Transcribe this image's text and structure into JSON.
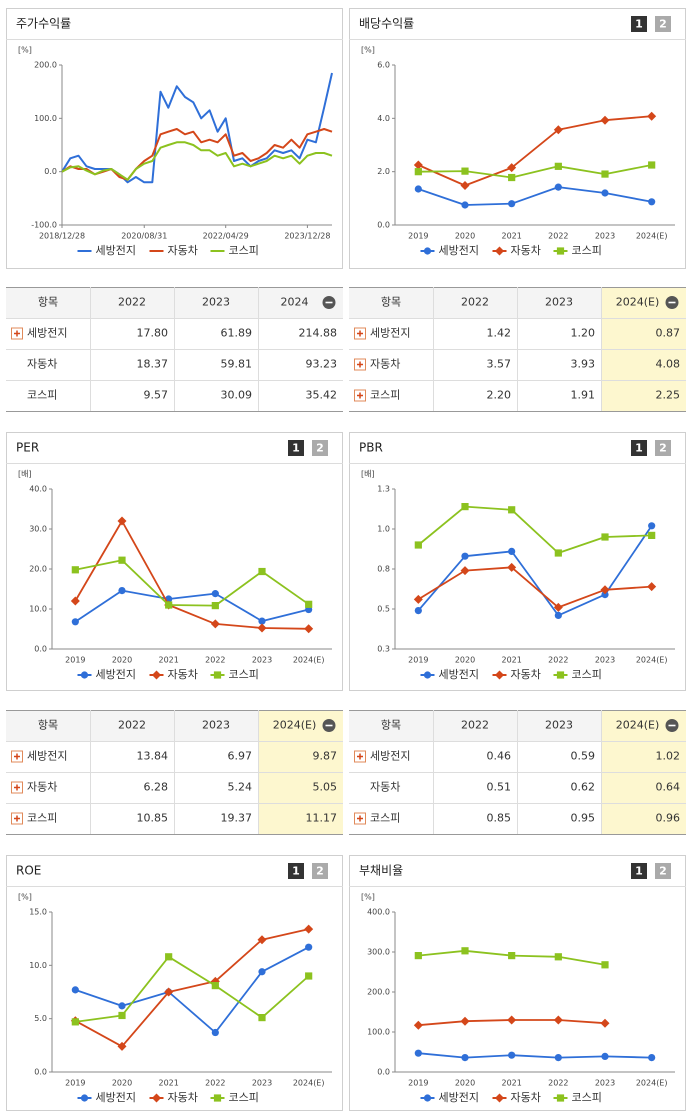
{
  "chart_data": [
    {
      "type": "line",
      "title": "주가수익률",
      "y_unit": "[%]",
      "markers": false,
      "x": [
        "2018/12/28",
        "2019/02/28",
        "2019/04/30",
        "2019/06/28",
        "2019/08/30",
        "2019/10/31",
        "2019/12/30",
        "2020/02/28",
        "2020/04/29",
        "2020/06/30",
        "2020/08/31",
        "2020/10/30",
        "2020/12/30",
        "2021/02/26",
        "2021/04/30",
        "2021/06/30",
        "2021/08/31",
        "2021/10/29",
        "2021/12/30",
        "2022/02/28",
        "2022/04/29",
        "2022/06/30",
        "2022/08/31",
        "2022/10/31",
        "2022/12/29",
        "2023/02/28",
        "2023/04/28",
        "2023/06/30",
        "2023/08/31",
        "2023/10/31",
        "2023/12/28",
        "2024/02/29",
        "2024/04/30",
        "2024/06/28"
      ],
      "xticks": [
        "2018/12/28",
        "2020/08/31",
        "2022/04/29",
        "2023/12/28"
      ],
      "ylim": [
        -100,
        200
      ],
      "yticks": [
        {
          "value": -100,
          "label": "-100.0"
        },
        {
          "value": 0,
          "label": "0.0"
        },
        {
          "value": 100,
          "label": "100.0"
        },
        {
          "value": 200,
          "label": "200.0"
        }
      ],
      "series": [
        {
          "name": "세방전지",
          "color": "#2f6fd8",
          "values": [
            0,
            25,
            30,
            10,
            5,
            5,
            5,
            -5,
            -20,
            -10,
            -20,
            -20,
            150,
            120,
            160,
            140,
            130,
            100,
            115,
            75,
            100,
            20,
            25,
            10,
            20,
            25,
            40,
            35,
            40,
            25,
            60,
            55,
            120,
            185
          ]
        },
        {
          "name": "자동차",
          "color": "#d4471a",
          "values": [
            0,
            10,
            5,
            5,
            -5,
            0,
            5,
            -10,
            -15,
            5,
            20,
            30,
            70,
            75,
            80,
            70,
            75,
            55,
            60,
            55,
            70,
            30,
            35,
            20,
            25,
            35,
            50,
            45,
            60,
            45,
            70,
            75,
            80,
            75
          ]
        },
        {
          "name": "코스피",
          "color": "#8cc21f",
          "values": [
            0,
            8,
            10,
            2,
            -5,
            2,
            5,
            -5,
            -15,
            5,
            15,
            20,
            45,
            50,
            55,
            55,
            50,
            40,
            40,
            30,
            35,
            10,
            15,
            10,
            15,
            20,
            30,
            25,
            30,
            15,
            30,
            35,
            35,
            30
          ]
        }
      ]
    },
    {
      "type": "line",
      "title": "배당수익률",
      "y_unit": "[%]",
      "markers": true,
      "buttons": [
        "1",
        "2"
      ],
      "categories": [
        "2019",
        "2020",
        "2021",
        "2022",
        "2023",
        "2024(E)"
      ],
      "ylim": [
        0,
        6
      ],
      "yticks": [
        {
          "value": 0,
          "label": "0.0"
        },
        {
          "value": 2,
          "label": "2.0"
        },
        {
          "value": 4,
          "label": "4.0"
        },
        {
          "value": 6,
          "label": "6.0"
        }
      ],
      "series": [
        {
          "name": "세방전지",
          "color": "#2f6fd8",
          "marker": "circle",
          "values": [
            1.35,
            0.75,
            0.8,
            1.42,
            1.2,
            0.87
          ]
        },
        {
          "name": "자동차",
          "color": "#d4471a",
          "marker": "diamond",
          "values": [
            2.25,
            1.48,
            2.15,
            3.57,
            3.93,
            4.08
          ]
        },
        {
          "name": "코스피",
          "color": "#8cc21f",
          "marker": "square",
          "values": [
            2.0,
            2.02,
            1.78,
            2.2,
            1.91,
            2.25
          ]
        }
      ]
    },
    {
      "type": "line",
      "title": "PER",
      "y_unit": "[배]",
      "markers": true,
      "buttons": [
        "1",
        "2"
      ],
      "categories": [
        "2019",
        "2020",
        "2021",
        "2022",
        "2023",
        "2024(E)"
      ],
      "ylim": [
        0,
        40
      ],
      "yticks": [
        {
          "value": 0,
          "label": "0.0"
        },
        {
          "value": 10,
          "label": "10.0"
        },
        {
          "value": 20,
          "label": "20.0"
        },
        {
          "value": 30,
          "label": "30.0"
        },
        {
          "value": 40,
          "label": "40.0"
        }
      ],
      "series": [
        {
          "name": "세방전지",
          "color": "#2f6fd8",
          "marker": "circle",
          "values": [
            6.8,
            14.6,
            12.5,
            13.84,
            6.97,
            9.87
          ]
        },
        {
          "name": "자동차",
          "color": "#d4471a",
          "marker": "diamond",
          "values": [
            12.0,
            32.0,
            11.0,
            6.28,
            5.24,
            5.05
          ]
        },
        {
          "name": "코스피",
          "color": "#8cc21f",
          "marker": "square",
          "values": [
            19.8,
            22.2,
            11.0,
            10.85,
            19.37,
            11.17
          ]
        }
      ]
    },
    {
      "type": "line",
      "title": "PBR",
      "y_unit": "[배]",
      "markers": true,
      "buttons": [
        "1",
        "2"
      ],
      "categories": [
        "2019",
        "2020",
        "2021",
        "2022",
        "2023",
        "2024(E)"
      ],
      "ylim": [
        0.25,
        1.25
      ],
      "yticks": [
        {
          "value": 0.25,
          "label": "0.3"
        },
        {
          "value": 0.5,
          "label": "0.5"
        },
        {
          "value": 0.75,
          "label": "0.8"
        },
        {
          "value": 1,
          "label": "1.0"
        },
        {
          "value": 1.25,
          "label": "1.3"
        }
      ],
      "series": [
        {
          "name": "세방전지",
          "color": "#2f6fd8",
          "marker": "circle",
          "values": [
            0.49,
            0.83,
            0.86,
            0.46,
            0.59,
            1.02
          ]
        },
        {
          "name": "자동차",
          "color": "#d4471a",
          "marker": "diamond",
          "values": [
            0.56,
            0.74,
            0.76,
            0.51,
            0.62,
            0.64
          ]
        },
        {
          "name": "코스피",
          "color": "#8cc21f",
          "marker": "square",
          "values": [
            0.9,
            1.14,
            1.12,
            0.85,
            0.95,
            0.96
          ]
        }
      ]
    },
    {
      "type": "line",
      "title": "ROE",
      "y_unit": "[%]",
      "markers": true,
      "buttons": [
        "1",
        "2"
      ],
      "categories": [
        "2019",
        "2020",
        "2021",
        "2022",
        "2023",
        "2024(E)"
      ],
      "ylim": [
        0,
        15
      ],
      "yticks": [
        {
          "value": 0,
          "label": "0.0"
        },
        {
          "value": 5,
          "label": "5.0"
        },
        {
          "value": 10,
          "label": "10.0"
        },
        {
          "value": 15,
          "label": "15.0"
        }
      ],
      "series": [
        {
          "name": "세방전지",
          "color": "#2f6fd8",
          "marker": "circle",
          "values": [
            7.7,
            6.2,
            7.5,
            3.7,
            9.4,
            11.7
          ]
        },
        {
          "name": "자동차",
          "color": "#d4471a",
          "marker": "diamond",
          "values": [
            4.8,
            2.4,
            7.5,
            8.5,
            12.4,
            13.4
          ]
        },
        {
          "name": "코스피",
          "color": "#8cc21f",
          "marker": "square",
          "values": [
            4.7,
            5.3,
            10.8,
            8.1,
            5.1,
            9.0
          ]
        }
      ]
    },
    {
      "type": "line",
      "title": "부채비율",
      "y_unit": "[%]",
      "markers": true,
      "buttons": [
        "1",
        "2"
      ],
      "categories": [
        "2019",
        "2020",
        "2021",
        "2022",
        "2023",
        "2024(E)"
      ],
      "ylim": [
        0,
        400
      ],
      "yticks": [
        {
          "value": 0,
          "label": "0.0"
        },
        {
          "value": 100,
          "label": "100.0"
        },
        {
          "value": 200,
          "label": "200.0"
        },
        {
          "value": 300,
          "label": "300.0"
        },
        {
          "value": 400,
          "label": "400.0"
        }
      ],
      "series": [
        {
          "name": "세방전지",
          "color": "#2f6fd8",
          "marker": "circle",
          "values": [
            47,
            36,
            42,
            36,
            39,
            36
          ]
        },
        {
          "name": "자동차",
          "color": "#d4471a",
          "marker": "diamond",
          "values": [
            117,
            127,
            130,
            130,
            122,
            null
          ]
        },
        {
          "name": "코스피",
          "color": "#8cc21f",
          "marker": "square",
          "values": [
            291,
            303,
            291,
            288,
            268,
            null
          ]
        }
      ]
    }
  ],
  "tables": [
    {
      "header": [
        "항목",
        "2022",
        "2023",
        "2024"
      ],
      "highlight_last": false,
      "rows": [
        [
          "세방전지",
          "17.80",
          "61.89",
          "214.88"
        ],
        [
          "자동차",
          "18.37",
          "59.81",
          "93.23"
        ],
        [
          "코스피",
          "9.57",
          "30.09",
          "35.42"
        ]
      ]
    },
    {
      "header": [
        "항목",
        "2022",
        "2023",
        "2024(E)"
      ],
      "highlight_last": true,
      "rows": [
        [
          "세방전지",
          "1.42",
          "1.20",
          "0.87"
        ],
        [
          "자동차",
          "3.57",
          "3.93",
          "4.08"
        ],
        [
          "코스피",
          "2.20",
          "1.91",
          "2.25"
        ]
      ]
    },
    {
      "header": [
        "항목",
        "2022",
        "2023",
        "2024(E)"
      ],
      "highlight_last": true,
      "rows": [
        [
          "세방전지",
          "13.84",
          "6.97",
          "9.87"
        ],
        [
          "자동차",
          "6.28",
          "5.24",
          "5.05"
        ],
        [
          "코스피",
          "10.85",
          "19.37",
          "11.17"
        ]
      ]
    },
    {
      "header": [
        "항목",
        "2022",
        "2023",
        "2024(E)"
      ],
      "highlight_last": true,
      "rows": [
        [
          "세방전지",
          "0.46",
          "0.59",
          "1.02"
        ],
        [
          "자동차",
          "0.51",
          "0.62",
          "0.64"
        ],
        [
          "코스피",
          "0.85",
          "0.95",
          "0.96"
        ]
      ]
    }
  ]
}
